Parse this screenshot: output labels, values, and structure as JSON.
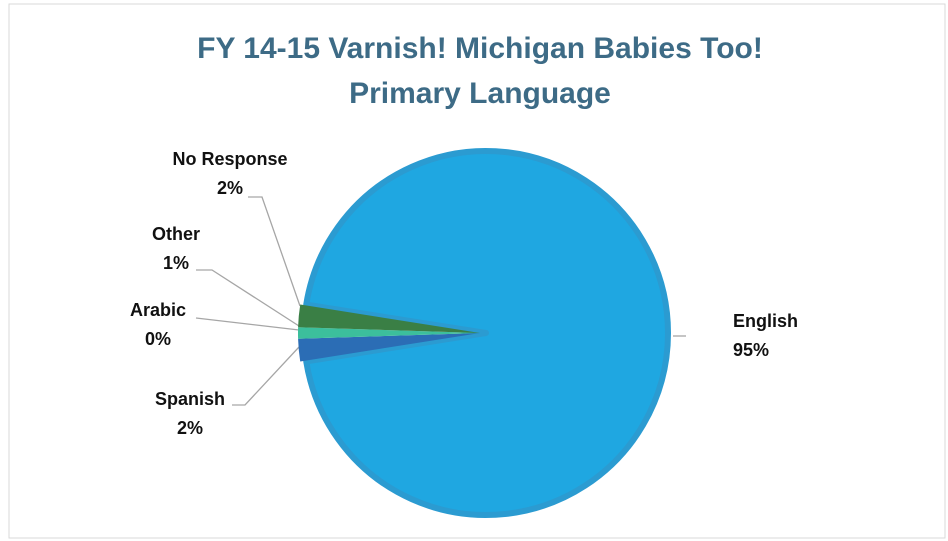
{
  "chart_data": {
    "type": "pie",
    "title": [
      "FY 14-15 Varnish! Michigan Babies Too!",
      "Primary Language"
    ],
    "categories": [
      "English",
      "Spanish",
      "Arabic",
      "Other",
      "No Response"
    ],
    "values": [
      95,
      2,
      0,
      1,
      2
    ],
    "value_labels": [
      "95%",
      "2%",
      "0%",
      "1%",
      "2%"
    ],
    "colors": [
      "#1fa7e1",
      "#2b6db5",
      "#4aa3c8",
      "#3cbf9c",
      "#3a7f45"
    ]
  }
}
